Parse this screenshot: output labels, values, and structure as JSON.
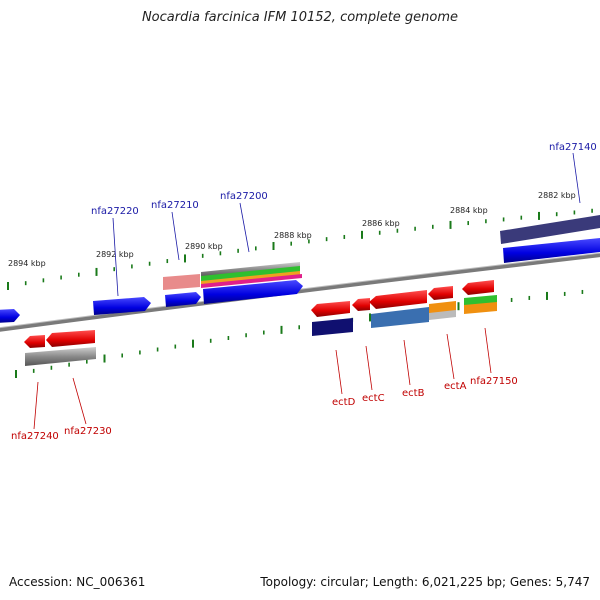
{
  "title": "Nocardia farcinica IFM 10152, complete genome",
  "accession": "Accession: NC_006361",
  "summary": "Topology: circular; Length: 6,021,225 bp; Genes: 5,747",
  "scale_labels": [
    "2894 kbp",
    "2892 kbp",
    "2890 kbp",
    "2888 kbp",
    "2886 kbp",
    "2884 kbp",
    "2882 kbp"
  ],
  "top_gene_labels": [
    "nfa27220",
    "nfa27210",
    "nfa27200",
    "nfa27140"
  ],
  "bottom_gene_labels": [
    "nfa27240",
    "nfa27230",
    "ectD",
    "ectC",
    "ectB",
    "ectA",
    "nfa27150"
  ],
  "colors": {
    "forward_gene": "#1010e0",
    "reverse_gene": "#e01010",
    "backbone": "#808080",
    "tick": "#1a7a1a",
    "top_label": "#1a1aa6",
    "bottom_label": "#c00000"
  }
}
